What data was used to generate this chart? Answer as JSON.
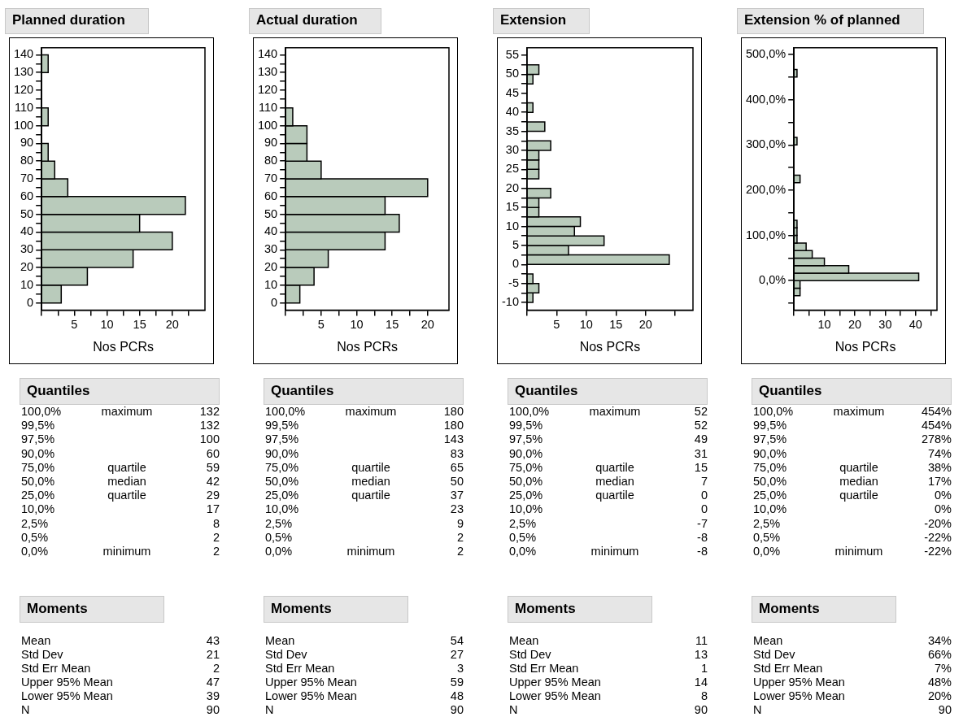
{
  "chart_data": [
    {
      "type": "histogram",
      "title": "Planned duration",
      "orientation": "horizontal",
      "xlabel": "Nos PCRs",
      "color": "#b9cbbb",
      "bins": [
        0,
        10,
        20,
        30,
        40,
        50,
        60,
        70,
        80,
        90,
        100,
        110,
        120,
        130,
        140
      ],
      "values": [
        3,
        7,
        14,
        20,
        15,
        22,
        4,
        2,
        1,
        0,
        1,
        0,
        0,
        1
      ],
      "ylim": [
        -4,
        144
      ],
      "yticks": [
        0,
        {
          "value": 5,
          "label": null
        },
        10,
        {
          "value": 15,
          "label": null
        },
        20,
        {
          "value": 25,
          "label": null
        },
        30,
        {
          "value": 35,
          "label": null
        },
        40,
        {
          "value": 45,
          "label": null
        },
        50,
        {
          "value": 55,
          "label": null
        },
        60,
        {
          "value": 65,
          "label": null
        },
        70,
        {
          "value": 75,
          "label": null
        },
        80,
        {
          "value": 85,
          "label": null
        },
        90,
        {
          "value": 95,
          "label": null
        },
        100,
        {
          "value": 105,
          "label": null
        },
        110,
        {
          "value": 115,
          "label": null
        },
        120,
        {
          "value": 125,
          "label": null
        },
        130,
        {
          "value": 135,
          "label": null
        },
        140
      ],
      "xlim": [
        0,
        25
      ],
      "xticks": [
        {
          "value": 0,
          "label": null
        },
        {
          "value": 2.5,
          "label": null
        },
        5,
        {
          "value": 7.5,
          "label": null
        },
        10,
        {
          "value": 12.5,
          "label": null
        },
        15,
        {
          "value": 17.5,
          "label": null
        },
        20,
        {
          "value": 22.5,
          "label": null
        }
      ]
    },
    {
      "type": "histogram",
      "title": "Actual duration",
      "orientation": "horizontal",
      "xlabel": "Nos PCRs",
      "color": "#b9cbbb",
      "bins": [
        0,
        10,
        20,
        30,
        40,
        50,
        60,
        70,
        80,
        90,
        100,
        110,
        120,
        130,
        140
      ],
      "values": [
        2,
        4,
        6,
        14,
        16,
        14,
        20,
        5,
        3,
        3,
        1,
        0,
        0,
        0
      ],
      "ylim": [
        -4,
        144
      ],
      "yticks": [
        0,
        {
          "value": 5,
          "label": null
        },
        10,
        {
          "value": 15,
          "label": null
        },
        20,
        {
          "value": 25,
          "label": null
        },
        30,
        {
          "value": 35,
          "label": null
        },
        40,
        {
          "value": 45,
          "label": null
        },
        50,
        {
          "value": 55,
          "label": null
        },
        60,
        {
          "value": 65,
          "label": null
        },
        70,
        {
          "value": 75,
          "label": null
        },
        80,
        {
          "value": 85,
          "label": null
        },
        90,
        {
          "value": 95,
          "label": null
        },
        100,
        {
          "value": 105,
          "label": null
        },
        110,
        {
          "value": 115,
          "label": null
        },
        120,
        {
          "value": 125,
          "label": null
        },
        130,
        {
          "value": 135,
          "label": null
        },
        140
      ],
      "xlim": [
        0,
        23
      ],
      "xticks": [
        {
          "value": 0,
          "label": null
        },
        {
          "value": 2.5,
          "label": null
        },
        5,
        {
          "value": 7.5,
          "label": null
        },
        10,
        {
          "value": 12.5,
          "label": null
        },
        15,
        {
          "value": 17.5,
          "label": null
        },
        20
      ]
    },
    {
      "type": "histogram",
      "title": "Extension",
      "orientation": "horizontal",
      "xlabel": "Nos PCRs",
      "color": "#b9cbbb",
      "bins": [
        -10,
        -7.5,
        -5,
        -2.5,
        0,
        2.5,
        5,
        7.5,
        10,
        12.5,
        15,
        17.5,
        20,
        22.5,
        25,
        27.5,
        30,
        32.5,
        35,
        37.5,
        40,
        42.5,
        45,
        47.5,
        50,
        52.5
      ],
      "values": [
        1,
        2,
        1,
        0,
        24,
        7,
        13,
        8,
        9,
        2,
        2,
        4,
        0,
        2,
        2,
        2,
        4,
        0,
        3,
        0,
        1,
        0,
        0,
        1,
        2
      ],
      "ylim": [
        -12,
        57
      ],
      "yticks": [
        -10,
        {
          "value": -7.5,
          "label": null
        },
        -5,
        {
          "value": -2.5,
          "label": null
        },
        0,
        {
          "value": 2.5,
          "label": null
        },
        5,
        {
          "value": 7.5,
          "label": null
        },
        10,
        {
          "value": 12.5,
          "label": null
        },
        15,
        {
          "value": 17.5,
          "label": null
        },
        20,
        {
          "value": 22.5,
          "label": null
        },
        25,
        {
          "value": 27.5,
          "label": null
        },
        30,
        {
          "value": 32.5,
          "label": null
        },
        35,
        {
          "value": 37.5,
          "label": null
        },
        40,
        {
          "value": 42.5,
          "label": null
        },
        45,
        {
          "value": 47.5,
          "label": null
        },
        50,
        {
          "value": 52.5,
          "label": null
        },
        55
      ],
      "xlim": [
        0,
        28
      ],
      "xticks": [
        {
          "value": 0,
          "label": null
        },
        5,
        10,
        15,
        20,
        {
          "value": 25,
          "label": null
        }
      ]
    },
    {
      "type": "histogram",
      "title": "Extension % of planned",
      "orientation": "horizontal",
      "xlabel": "Nos PCRs",
      "color": "#b9cbbb",
      "bins": [
        -33.3,
        -16.7,
        0,
        16.7,
        33.3,
        50,
        66.7,
        83.3,
        100,
        116.7,
        133.3,
        150,
        166.7,
        183.3,
        200,
        216.7,
        233.3,
        250,
        266.7,
        283.3,
        300,
        316.7,
        333.3,
        350,
        366.7,
        383.3,
        400,
        416.7,
        433.3,
        450,
        466.7
      ],
      "values": [
        2,
        2,
        41,
        18,
        10,
        6,
        4,
        1,
        1,
        1,
        0,
        0,
        0,
        0,
        0,
        2,
        0,
        0,
        0,
        0,
        1,
        0,
        0,
        0,
        0,
        0,
        0,
        0,
        0,
        1
      ],
      "ylim": [
        -65,
        515
      ],
      "yticks": [
        {
          "value": -50,
          "label": null
        },
        {
          "value": 0,
          "label": "0,0%"
        },
        {
          "value": 50,
          "label": null
        },
        {
          "value": 100,
          "label": "100,0%"
        },
        {
          "value": 150,
          "label": null
        },
        {
          "value": 200,
          "label": "200,0%"
        },
        {
          "value": 250,
          "label": null
        },
        {
          "value": 300,
          "label": "300,0%"
        },
        {
          "value": 350,
          "label": null
        },
        {
          "value": 400,
          "label": "400,0%"
        },
        {
          "value": 450,
          "label": null
        },
        {
          "value": 500,
          "label": "500,0%"
        }
      ],
      "xlim": [
        0,
        47
      ],
      "xticks": [
        {
          "value": 0,
          "label": null
        },
        {
          "value": 5,
          "label": null
        },
        10,
        {
          "value": 15,
          "label": null
        },
        20,
        {
          "value": 25,
          "label": null
        },
        30,
        {
          "value": 35,
          "label": null
        },
        40,
        {
          "value": 45,
          "label": null
        }
      ]
    },
    {
      "type": "other",
      "title": "Quantiles",
      "categories": [
        "100,0%",
        "99,5%",
        "97,5%",
        "90,0%",
        "75,0%",
        "50,0%",
        "25,0%",
        "10,0%",
        "2,5%",
        "0,5%",
        "0,0%"
      ],
      "y_categories": [
        "maximum",
        null,
        null,
        null,
        "quartile",
        "median",
        "quartile",
        null,
        null,
        null,
        "minimum"
      ],
      "y2_categories": [
        "132",
        "132",
        "100",
        "60",
        "59",
        "42",
        "29",
        "17",
        "8",
        "2",
        "2"
      ]
    },
    {
      "type": "other",
      "title": "Quantiles",
      "categories": [
        "100,0%",
        "99,5%",
        "97,5%",
        "90,0%",
        "75,0%",
        "50,0%",
        "25,0%",
        "10,0%",
        "2,5%",
        "0,5%",
        "0,0%"
      ],
      "y_categories": [
        "maximum",
        null,
        null,
        null,
        "quartile",
        "median",
        "quartile",
        null,
        null,
        null,
        "minimum"
      ],
      "y2_categories": [
        "180",
        "180",
        "143",
        "83",
        "65",
        "50",
        "37",
        "23",
        "9",
        "2",
        "2"
      ]
    },
    {
      "type": "other",
      "title": "Quantiles",
      "categories": [
        "100,0%",
        "99,5%",
        "97,5%",
        "90,0%",
        "75,0%",
        "50,0%",
        "25,0%",
        "10,0%",
        "2,5%",
        "0,5%",
        "0,0%"
      ],
      "y_categories": [
        "maximum",
        null,
        null,
        null,
        "quartile",
        "median",
        "quartile",
        null,
        null,
        null,
        "minimum"
      ],
      "y2_categories": [
        "52",
        "52",
        "49",
        "31",
        "15",
        "7",
        "0",
        "0",
        "-7",
        "-8",
        "-8"
      ]
    },
    {
      "type": "other",
      "title": "Quantiles",
      "categories": [
        "100,0%",
        "99,5%",
        "97,5%",
        "90,0%",
        "75,0%",
        "50,0%",
        "25,0%",
        "10,0%",
        "2,5%",
        "0,5%",
        "0,0%"
      ],
      "y_categories": [
        "maximum",
        null,
        null,
        null,
        "quartile",
        "median",
        "quartile",
        null,
        null,
        null,
        "minimum"
      ],
      "y2_categories": [
        "454%",
        "454%",
        "278%",
        "74%",
        "38%",
        "17%",
        "0%",
        "0%",
        "-20%",
        "-22%",
        "-22%"
      ]
    },
    {
      "type": "other",
      "title": "Moments",
      "categories": [
        "Mean",
        "Std Dev",
        "Std Err Mean",
        "Upper 95% Mean",
        "Lower 95% Mean",
        "N"
      ],
      "y2_categories": [
        "43",
        "21",
        "2",
        "47",
        "39",
        "90"
      ]
    },
    {
      "type": "other",
      "title": "Moments",
      "categories": [
        "Mean",
        "Std Dev",
        "Std Err Mean",
        "Upper 95% Mean",
        "Lower 95% Mean",
        "N"
      ],
      "y2_categories": [
        "54",
        "27",
        "3",
        "59",
        "48",
        "90"
      ]
    },
    {
      "type": "other",
      "title": "Moments",
      "categories": [
        "Mean",
        "Std Dev",
        "Std Err Mean",
        "Upper 95% Mean",
        "Lower 95% Mean",
        "N"
      ],
      "y2_categories": [
        "11",
        "13",
        "1",
        "14",
        "8",
        "90"
      ]
    },
    {
      "type": "other",
      "title": "Moments",
      "categories": [
        "Mean",
        "Std Dev",
        "Std Err Mean",
        "Upper 95% Mean",
        "Lower 95% Mean",
        "N"
      ],
      "y2_categories": [
        "34%",
        "66%",
        "7%",
        "48%",
        "20%",
        "90"
      ]
    }
  ]
}
